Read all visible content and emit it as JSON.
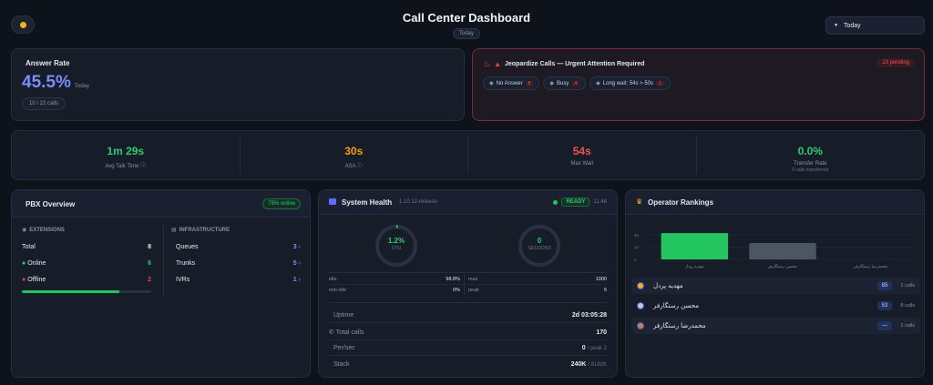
{
  "header": {
    "title": "Call Center Dashboard",
    "subtitle_badge": "Today",
    "period_select": "Today"
  },
  "answer_rate": {
    "title": "Answer Rate",
    "value": "45.5%",
    "period": "Today",
    "calls": "10 / 22 calls"
  },
  "jeopardize": {
    "title": "Jeopardize Calls — Urgent Attention Required",
    "pending": "13 pending",
    "chips": [
      {
        "label": "No Answer",
        "count": "8"
      },
      {
        "label": "Busy",
        "count": "4"
      },
      {
        "label": "Long wait: 54s > 50s",
        "count": "1"
      }
    ]
  },
  "metrics": [
    {
      "value": "1m 29s",
      "label": "Avg Talk Time",
      "color": "#2ecc71",
      "info": true,
      "sub": ""
    },
    {
      "value": "30s",
      "label": "ASA",
      "color": "#f59e0b",
      "info": true,
      "sub": ""
    },
    {
      "value": "54s",
      "label": "Max Wait",
      "color": "#f05252",
      "info": false,
      "sub": ""
    },
    {
      "value": "0.0%",
      "label": "Transfer Rate",
      "color": "#2ecc71",
      "info": false,
      "sub": "0 calls transferred"
    }
  ],
  "pbx": {
    "title": "PBX Overview",
    "online_badge": "75% online",
    "extensions_heading": "EXTENSIONS",
    "infrastructure_heading": "INFRASTRUCTURE",
    "total_label": "Total",
    "total_value": "8",
    "online_label": "Online",
    "online_value": "6",
    "offline_label": "Offline",
    "offline_value": "2",
    "online_fraction": 0.75,
    "queues_label": "Queues",
    "queues_value": "3",
    "trunks_label": "Trunks",
    "trunks_value": "5",
    "ivrs_label": "IVRs",
    "ivrs_value": "1"
  },
  "system": {
    "title": "System Health",
    "version": "1.10.12-release",
    "status": "READY",
    "time": "11:48",
    "cpu_value": "1.2%",
    "cpu_label": "CPU",
    "cpu_fraction": 0.012,
    "sessions_value": "0",
    "sessions_label": "SESSIONS",
    "stats": [
      {
        "l1": "idle",
        "v1": "98.8%",
        "l2": "max",
        "v2": "1000"
      },
      {
        "l1": "min idle",
        "v1": "0%",
        "l2": "peak",
        "v2": "5"
      }
    ],
    "uptime_label": "Uptime",
    "uptime_value": "2d 03:05:28",
    "total_calls_label": "Total calls",
    "total_calls_value": "170",
    "per_sec_label": "Per/sec",
    "per_sec_value": "0",
    "per_sec_peak": "/ peak 2",
    "stack_label": "Stack",
    "stack_value": "240K",
    "stack_max": "/ 8192K"
  },
  "rankings": {
    "title": "Operator Rankings",
    "chart_data": {
      "type": "bar",
      "categories": [
        "مهدیه پردل",
        "محسن رستگارفر",
        "محمدرضا رستگارفر"
      ],
      "values": [
        85,
        53,
        0
      ],
      "y_ticks": [
        "80",
        "40",
        "0"
      ],
      "ylim": [
        0,
        100
      ],
      "colors": [
        "#22c55e",
        "#4b5563",
        "#4b5563"
      ]
    },
    "rows": [
      {
        "name": "مهدیه پردل",
        "score": "85",
        "calls": "1 calls",
        "medal": "gold"
      },
      {
        "name": "محسن رستگارفر",
        "score": "53",
        "calls": "8 calls",
        "medal": "silver"
      },
      {
        "name": "محمدرضا رستگارفر",
        "score": "—",
        "calls": "1 calls",
        "medal": "bronze"
      }
    ]
  }
}
